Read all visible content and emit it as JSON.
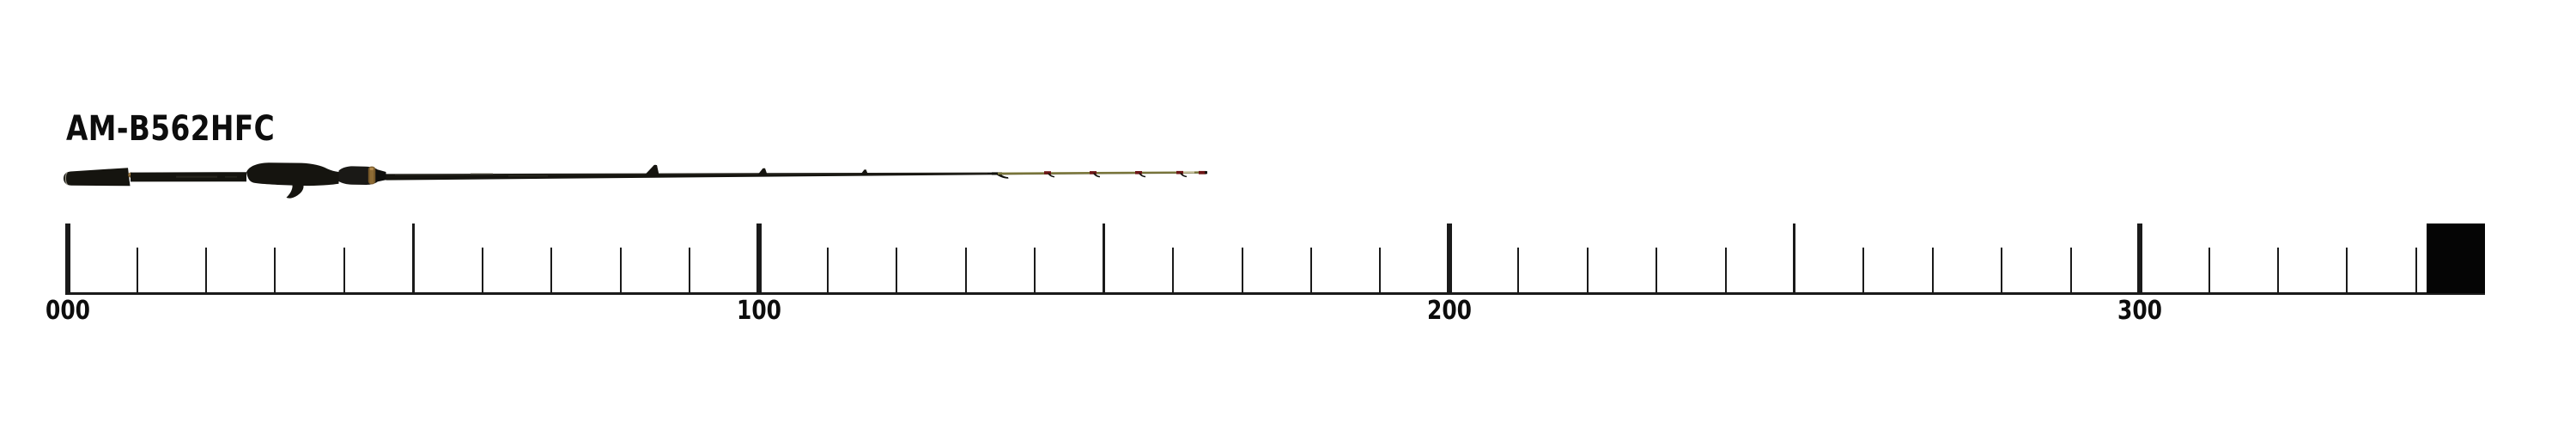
{
  "title": "AM-B562HFC",
  "image_alt": "baitcasting fishing rod product photo shown to scale above a measurement ruler",
  "colors": {
    "background": "#ffffff",
    "ink": "#0d0d0d",
    "ruler": "#1a1a1a",
    "marker": "#050505",
    "rod_black": "#15140f",
    "rod_tip_olive": "#7c783c",
    "rod_wrap_red": "#6e1616",
    "rod_accent_gold": "#7d5f33"
  },
  "ruler": {
    "min": 0,
    "max": 350,
    "minor_step": 10,
    "mid_step": 50,
    "major_step": 100,
    "labels": [
      {
        "value": 0,
        "text": "000"
      },
      {
        "value": 100,
        "text": "100"
      },
      {
        "value": 200,
        "text": "200"
      },
      {
        "value": 300,
        "text": "300"
      }
    ],
    "end_marker": {
      "start_value": 341.5,
      "end_value": 350
    }
  }
}
